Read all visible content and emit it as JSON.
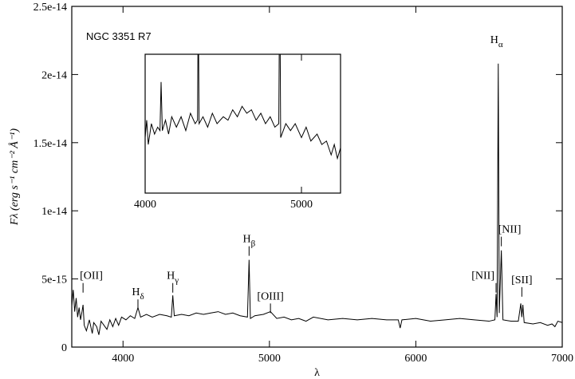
{
  "chart_data": [
    {
      "type": "line",
      "title": "NGC 3351 R7",
      "x_label": "λ",
      "y_label": "Fλ (erg s⁻¹ cm⁻² Å⁻¹)",
      "xlim": [
        3650,
        7000
      ],
      "xticks": [
        4000,
        5000,
        6000,
        7000
      ],
      "ylim": [
        0,
        2.5e-14
      ],
      "yticks": [
        0,
        {
          "value": 5e-15,
          "label": "5e-15"
        },
        {
          "value": 1e-14,
          "label": "1e-14"
        },
        {
          "value": 1.5e-14,
          "label": "1.5e-14"
        },
        {
          "value": 2e-14,
          "label": "2e-14"
        },
        {
          "value": 2.5e-14,
          "label": "2.5e-14"
        }
      ],
      "color": "#000000",
      "x": [
        3650,
        3660,
        3670,
        3680,
        3690,
        3700,
        3710,
        3720,
        3727,
        3735,
        3750,
        3770,
        3790,
        3800,
        3820,
        3835,
        3850,
        3870,
        3890,
        3910,
        3930,
        3950,
        3970,
        3990,
        4020,
        4050,
        4080,
        4102,
        4120,
        4160,
        4200,
        4250,
        4300,
        4330,
        4340,
        4350,
        4400,
        4450,
        4500,
        4550,
        4600,
        4650,
        4700,
        4750,
        4800,
        4850,
        4861,
        4870,
        4900,
        4959,
        5007,
        5050,
        5100,
        5150,
        5200,
        5250,
        5300,
        5400,
        5500,
        5600,
        5700,
        5800,
        5880,
        5893,
        5905,
        6000,
        6100,
        6200,
        6300,
        6400,
        6500,
        6540,
        6548,
        6555,
        6563,
        6570,
        6584,
        6595,
        6650,
        6700,
        6717,
        6724,
        6731,
        6740,
        6800,
        6850,
        6900,
        6930,
        6950,
        6970,
        7000
      ],
      "values": [
        3e-15,
        4.2e-15,
        2.6e-15,
        3.6e-15,
        2.2e-15,
        2.9e-15,
        2e-15,
        2.6e-15,
        3.1e-15,
        1.6e-15,
        1.2e-15,
        2e-15,
        1e-15,
        1.8e-15,
        1.5e-15,
        9e-16,
        1.9e-15,
        1.6e-15,
        1.3e-15,
        2e-15,
        1.5e-15,
        2.1e-15,
        1.6e-15,
        2.2e-15,
        2e-15,
        2.3e-15,
        2.1e-15,
        2.9e-15,
        2.2e-15,
        2.4e-15,
        2.2e-15,
        2.4e-15,
        2.3e-15,
        2.2e-15,
        3.8e-15,
        2.3e-15,
        2.4e-15,
        2.3e-15,
        2.5e-15,
        2.4e-15,
        2.5e-15,
        2.6e-15,
        2.4e-15,
        2.5e-15,
        2.3e-15,
        2.2e-15,
        6.4e-15,
        2.1e-15,
        2.3e-15,
        2.4e-15,
        2.6e-15,
        2.1e-15,
        2.2e-15,
        2e-15,
        2.1e-15,
        1.9e-15,
        2.2e-15,
        2e-15,
        2.1e-15,
        2e-15,
        2.1e-15,
        2e-15,
        2e-15,
        1.4e-15,
        2e-15,
        2.1e-15,
        1.9e-15,
        2e-15,
        2.1e-15,
        2e-15,
        1.9e-15,
        2e-15,
        3.9e-15,
        2.2e-15,
        2.08e-14,
        2.5e-15,
        7.1e-15,
        2e-15,
        1.9e-15,
        1.9e-15,
        3.2e-15,
        2.2e-15,
        3.1e-15,
        1.8e-15,
        1.7e-15,
        1.8e-15,
        1.6e-15,
        1.7e-15,
        1.5e-15,
        1.9e-15,
        1.8e-15
      ],
      "annotations": [
        {
          "text": "[OII]",
          "x": 3727,
          "y": 4.7e-15,
          "align": "start"
        },
        {
          "text": "H",
          "sub": "δ",
          "x": 4102,
          "y": 3.5e-15,
          "align": "middle"
        },
        {
          "text": "H",
          "sub": "γ",
          "x": 4340,
          "y": 4.7e-15,
          "align": "middle"
        },
        {
          "text": "H",
          "sub": "β",
          "x": 4861,
          "y": 7.4e-15,
          "align": "middle"
        },
        {
          "text": "[OIII]",
          "x": 5007,
          "y": 3.2e-15,
          "align": "middle"
        },
        {
          "text": "[NII]",
          "x": 6548,
          "y": 4.7e-15,
          "align": "end"
        },
        {
          "text": "H",
          "sub": "α",
          "x": 6563,
          "y": 2.2e-14,
          "align": "start",
          "tick": false
        },
        {
          "text": "[NII]",
          "x": 6584,
          "y": 8.1e-15,
          "align": "start"
        },
        {
          "text": "[SII]",
          "x": 6724,
          "y": 4.4e-15,
          "align": "middle"
        }
      ]
    },
    {
      "type": "line",
      "xlim": [
        4000,
        5250
      ],
      "xticks": [
        4000,
        5000
      ],
      "ylim": [
        1.2e-15,
        3.2e-15
      ],
      "color": "#000000",
      "x": [
        4000,
        4010,
        4020,
        4040,
        4060,
        4080,
        4095,
        4102,
        4110,
        4130,
        4150,
        4170,
        4200,
        4230,
        4260,
        4290,
        4320,
        4335,
        4340,
        4345,
        4370,
        4400,
        4430,
        4460,
        4500,
        4530,
        4560,
        4590,
        4620,
        4650,
        4680,
        4710,
        4740,
        4770,
        4800,
        4830,
        4855,
        4861,
        4867,
        4900,
        4930,
        4960,
        5000,
        5030,
        5060,
        5100,
        5130,
        5160,
        5190,
        5210,
        5230,
        5250
      ],
      "values": [
        2e-15,
        2.25e-15,
        1.9e-15,
        2.2e-15,
        2.05e-15,
        2.15e-15,
        2.1e-15,
        2.8e-15,
        2.1e-15,
        2.25e-15,
        2.05e-15,
        2.3e-15,
        2.15e-15,
        2.3e-15,
        2.1e-15,
        2.35e-15,
        2.2e-15,
        2.25e-15,
        4e-15,
        2.2e-15,
        2.3e-15,
        2.15e-15,
        2.35e-15,
        2.2e-15,
        2.3e-15,
        2.25e-15,
        2.4e-15,
        2.3e-15,
        2.45e-15,
        2.35e-15,
        2.4e-15,
        2.25e-15,
        2.35e-15,
        2.2e-15,
        2.3e-15,
        2.15e-15,
        2.2e-15,
        4.5e-15,
        2e-15,
        2.2e-15,
        2.1e-15,
        2.2e-15,
        2e-15,
        2.15e-15,
        1.95e-15,
        2.05e-15,
        1.9e-15,
        1.95e-15,
        1.75e-15,
        1.9e-15,
        1.7e-15,
        1.85e-15
      ]
    }
  ]
}
